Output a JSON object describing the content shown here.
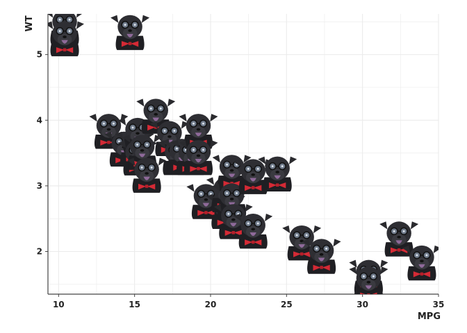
{
  "chart_data": {
    "type": "scatter",
    "title": "",
    "xlabel": "MPG",
    "ylabel": "WT",
    "xlim": [
      9.3,
      35
    ],
    "ylim": [
      1.35,
      5.62
    ],
    "grid": true,
    "legend": "none",
    "x_ticks": [
      "10",
      "15",
      "20",
      "25",
      "30",
      "35"
    ],
    "y_ticks": [
      "2",
      "3",
      "4",
      "5"
    ],
    "marker": "dog-head-with-glasses-and-bow-tie",
    "colors": {
      "fur": "#2a2a2e",
      "bowtie": "#d42a35",
      "tongue": "#8f6a9a",
      "grid": "#ebebeb",
      "axis": "#444444"
    },
    "points": [
      {
        "x": 10.4,
        "y": 5.424
      },
      {
        "x": 10.4,
        "y": 5.25
      },
      {
        "x": 14.7,
        "y": 5.345
      },
      {
        "x": 13.3,
        "y": 3.84
      },
      {
        "x": 14.3,
        "y": 3.57
      },
      {
        "x": 15.0,
        "y": 3.57
      },
      {
        "x": 15.2,
        "y": 3.78
      },
      {
        "x": 15.2,
        "y": 3.435
      },
      {
        "x": 15.5,
        "y": 3.52
      },
      {
        "x": 15.8,
        "y": 3.17
      },
      {
        "x": 16.4,
        "y": 4.07
      },
      {
        "x": 17.3,
        "y": 3.73
      },
      {
        "x": 17.8,
        "y": 3.44
      },
      {
        "x": 18.1,
        "y": 3.46
      },
      {
        "x": 18.7,
        "y": 3.44
      },
      {
        "x": 19.2,
        "y": 3.84
      },
      {
        "x": 19.2,
        "y": 3.44
      },
      {
        "x": 19.7,
        "y": 2.77
      },
      {
        "x": 21.0,
        "y": 2.62
      },
      {
        "x": 21.0,
        "y": 2.875
      },
      {
        "x": 21.4,
        "y": 3.215
      },
      {
        "x": 21.4,
        "y": 2.78
      },
      {
        "x": 21.5,
        "y": 2.465
      },
      {
        "x": 22.8,
        "y": 3.15
      },
      {
        "x": 22.8,
        "y": 2.32
      },
      {
        "x": 24.4,
        "y": 3.19
      },
      {
        "x": 26.0,
        "y": 2.14
      },
      {
        "x": 27.3,
        "y": 1.935
      },
      {
        "x": 30.4,
        "y": 1.615
      },
      {
        "x": 30.4,
        "y": 1.513
      },
      {
        "x": 32.4,
        "y": 2.2
      },
      {
        "x": 33.9,
        "y": 1.835
      }
    ]
  }
}
